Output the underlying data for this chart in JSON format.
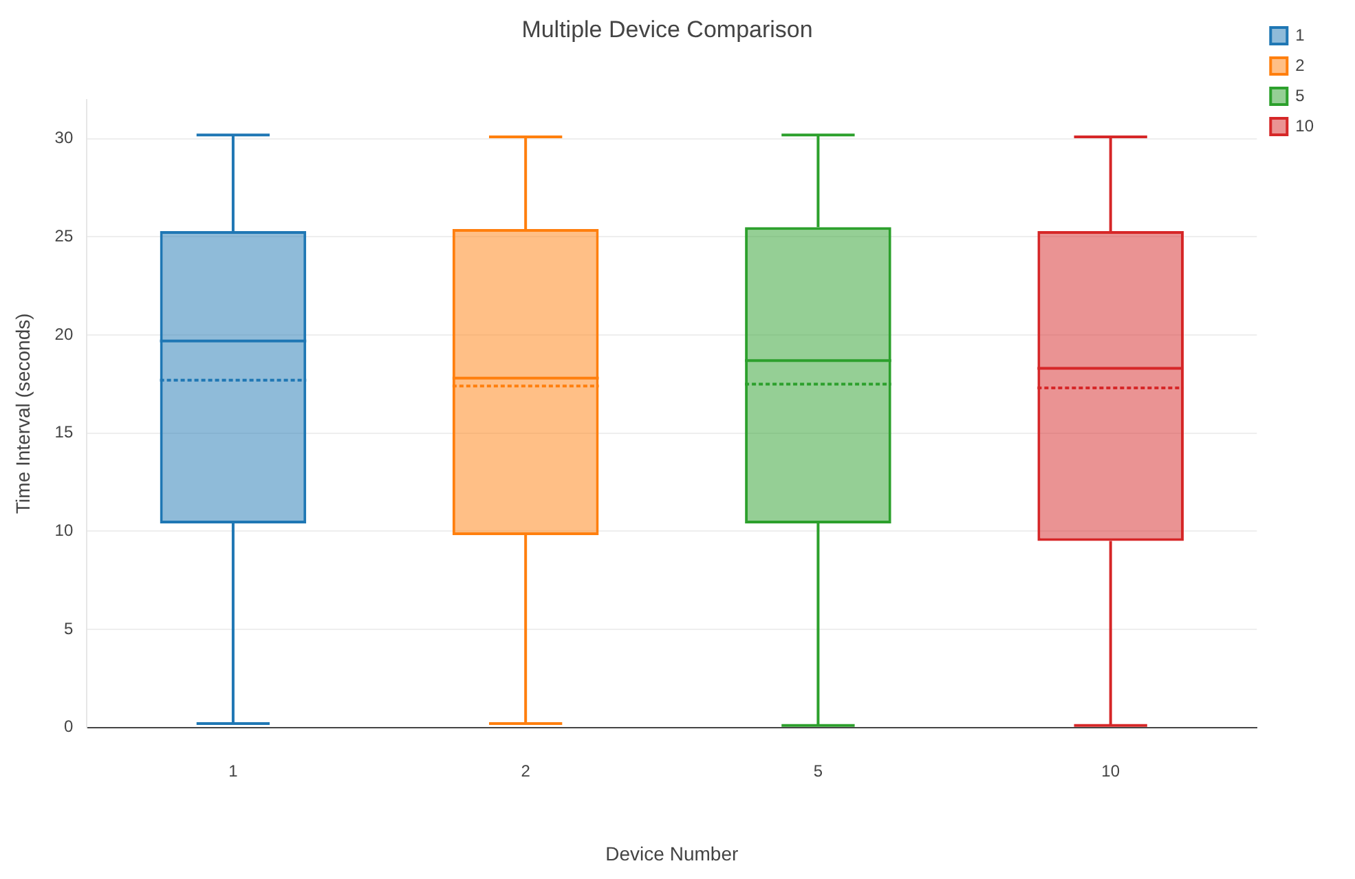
{
  "chart_data": {
    "type": "box",
    "title": "Multiple Device Comparison",
    "xlabel": "Device Number",
    "ylabel": "Time Interval (seconds)",
    "categories": [
      "1",
      "2",
      "5",
      "10"
    ],
    "ylim": [
      0,
      32
    ],
    "yticks": [
      0,
      5,
      10,
      15,
      20,
      25,
      30
    ],
    "grid": "y",
    "legend": "top right",
    "series": [
      {
        "name": "1",
        "color": "#1f77b4",
        "boxes": [
          {
            "low": 0.2,
            "q1": 10.4,
            "median": 19.7,
            "q3": 25.3,
            "high": 30.2,
            "mean": 17.7
          },
          null,
          null,
          null
        ]
      },
      {
        "name": "2",
        "color": "#ff7f0e",
        "boxes": [
          null,
          {
            "low": 0.2,
            "q1": 9.8,
            "median": 17.8,
            "q3": 25.4,
            "high": 30.1,
            "mean": 17.4
          },
          null,
          null
        ]
      },
      {
        "name": "5",
        "color": "#2ca02c",
        "boxes": [
          null,
          null,
          {
            "low": 0.1,
            "q1": 10.4,
            "median": 18.7,
            "q3": 25.5,
            "high": 30.2,
            "mean": 17.5
          },
          null
        ]
      },
      {
        "name": "10",
        "color": "#d62728",
        "boxes": [
          null,
          null,
          null,
          {
            "low": 0.1,
            "q1": 9.5,
            "median": 18.3,
            "q3": 25.3,
            "high": 30.1,
            "mean": 17.3
          }
        ]
      }
    ]
  }
}
